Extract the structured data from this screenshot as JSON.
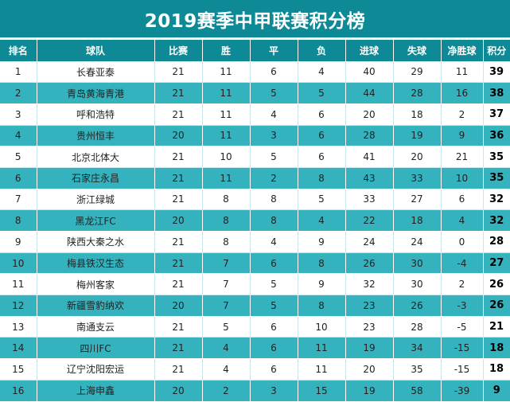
{
  "title": "2019赛季中甲联赛积分榜",
  "colors": {
    "header_bg": "#0e8a96",
    "stripe_bg": "#34b3bf",
    "row_bg": "#ffffff"
  },
  "columns": [
    "排名",
    "球队",
    "比赛",
    "胜",
    "平",
    "负",
    "进球",
    "失球",
    "净胜球",
    "积分"
  ],
  "rows": [
    {
      "rank": "1",
      "team": "长春亚泰",
      "played": "21",
      "won": "11",
      "drawn": "6",
      "lost": "4",
      "gf": "40",
      "ga": "29",
      "gd": "11",
      "pts": "39"
    },
    {
      "rank": "2",
      "team": "青岛黄海青港",
      "played": "21",
      "won": "11",
      "drawn": "5",
      "lost": "5",
      "gf": "44",
      "ga": "28",
      "gd": "16",
      "pts": "38"
    },
    {
      "rank": "3",
      "team": "呼和浩特",
      "played": "21",
      "won": "11",
      "drawn": "4",
      "lost": "6",
      "gf": "20",
      "ga": "18",
      "gd": "2",
      "pts": "37"
    },
    {
      "rank": "4",
      "team": "贵州恒丰",
      "played": "20",
      "won": "11",
      "drawn": "3",
      "lost": "6",
      "gf": "28",
      "ga": "19",
      "gd": "9",
      "pts": "36"
    },
    {
      "rank": "5",
      "team": "北京北体大",
      "played": "21",
      "won": "10",
      "drawn": "5",
      "lost": "6",
      "gf": "41",
      "ga": "20",
      "gd": "21",
      "pts": "35"
    },
    {
      "rank": "6",
      "team": "石家庄永昌",
      "played": "21",
      "won": "11",
      "drawn": "2",
      "lost": "8",
      "gf": "43",
      "ga": "33",
      "gd": "10",
      "pts": "35"
    },
    {
      "rank": "7",
      "team": "浙江绿城",
      "played": "21",
      "won": "8",
      "drawn": "8",
      "lost": "5",
      "gf": "33",
      "ga": "27",
      "gd": "6",
      "pts": "32"
    },
    {
      "rank": "8",
      "team": "黑龙江FC",
      "played": "20",
      "won": "8",
      "drawn": "8",
      "lost": "4",
      "gf": "22",
      "ga": "18",
      "gd": "4",
      "pts": "32"
    },
    {
      "rank": "9",
      "team": "陕西大秦之水",
      "played": "21",
      "won": "8",
      "drawn": "4",
      "lost": "9",
      "gf": "24",
      "ga": "24",
      "gd": "0",
      "pts": "28"
    },
    {
      "rank": "10",
      "team": "梅县铁汉生态",
      "played": "21",
      "won": "7",
      "drawn": "6",
      "lost": "8",
      "gf": "26",
      "ga": "30",
      "gd": "-4",
      "pts": "27"
    },
    {
      "rank": "11",
      "team": "梅州客家",
      "played": "21",
      "won": "7",
      "drawn": "5",
      "lost": "9",
      "gf": "32",
      "ga": "30",
      "gd": "2",
      "pts": "26"
    },
    {
      "rank": "12",
      "team": "新疆雪豹纳欢",
      "played": "20",
      "won": "7",
      "drawn": "5",
      "lost": "8",
      "gf": "23",
      "ga": "26",
      "gd": "-3",
      "pts": "26"
    },
    {
      "rank": "13",
      "team": "南通支云",
      "played": "21",
      "won": "5",
      "drawn": "6",
      "lost": "10",
      "gf": "23",
      "ga": "28",
      "gd": "-5",
      "pts": "21"
    },
    {
      "rank": "14",
      "team": "四川FC",
      "played": "21",
      "won": "4",
      "drawn": "6",
      "lost": "11",
      "gf": "19",
      "ga": "34",
      "gd": "-15",
      "pts": "18"
    },
    {
      "rank": "15",
      "team": "辽宁沈阳宏运",
      "played": "21",
      "won": "4",
      "drawn": "6",
      "lost": "11",
      "gf": "20",
      "ga": "35",
      "gd": "-15",
      "pts": "18"
    },
    {
      "rank": "16",
      "team": "上海申鑫",
      "played": "20",
      "won": "2",
      "drawn": "3",
      "lost": "15",
      "gf": "19",
      "ga": "58",
      "gd": "-39",
      "pts": "9"
    }
  ]
}
